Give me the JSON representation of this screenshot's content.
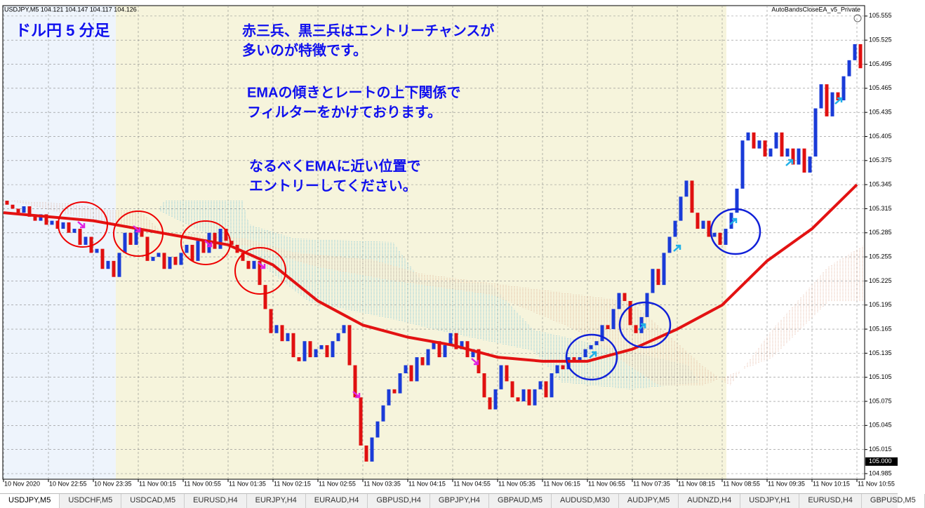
{
  "chart_window": {
    "header": "USDJPY,M5  104.121 104.147 104.117 104.126",
    "ea_name": "AutoBandsCloseEA_v5_Private",
    "annotations": {
      "title": "ドル円 5 分足",
      "line1": "赤三兵、黒三兵はエントリーチャンスが",
      "line2": "多いのが特徴です。",
      "line3": "EMAの傾きとレートの上下関係で",
      "line4": "フィルターをかけております。",
      "line5": "なるべくEMAに近い位置で",
      "line6": "エントリーしてください。"
    },
    "ylim": [
      104.978,
      105.568
    ],
    "price_ticks": [
      105.555,
      105.525,
      105.495,
      105.465,
      105.435,
      105.405,
      105.375,
      105.345,
      105.315,
      105.285,
      105.255,
      105.225,
      105.195,
      105.165,
      105.135,
      105.105,
      105.075,
      105.045,
      105.015,
      104.985
    ],
    "current_price": {
      "value": 105.0,
      "label": "105.000"
    },
    "time_labels": [
      "10 Nov 2020",
      "10 Nov 22:55",
      "10 Nov 23:35",
      "11 Nov 00:15",
      "11 Nov 00:55",
      "11 Nov 01:35",
      "11 Nov 02:15",
      "11 Nov 02:55",
      "11 Nov 03:35",
      "11 Nov 04:15",
      "11 Nov 04:55",
      "11 Nov 05:35",
      "11 Nov 06:15",
      "11 Nov 06:55",
      "11 Nov 07:35",
      "11 Nov 08:15",
      "11 Nov 08:55",
      "11 Nov 09:35",
      "11 Nov 10:15",
      "11 Nov 10:55"
    ],
    "candles": {
      "open": 105.325,
      "closes": [
        105.32,
        105.315,
        105.31,
        105.318,
        105.305,
        105.3,
        105.308,
        105.295,
        105.3,
        105.29,
        105.298,
        105.285,
        105.29,
        105.27,
        105.28,
        105.26,
        105.265,
        105.24,
        105.25,
        105.23,
        105.26,
        105.285,
        105.27,
        105.29,
        105.28,
        105.25,
        105.255,
        105.26,
        105.24,
        105.255,
        105.245,
        105.26,
        105.27,
        105.25,
        105.275,
        105.26,
        105.285,
        105.265,
        105.29,
        105.275,
        105.27,
        105.26,
        105.25,
        105.24,
        105.25,
        105.22,
        105.19,
        105.16,
        105.17,
        105.15,
        105.16,
        105.13,
        105.125,
        105.15,
        105.13,
        105.14,
        105.145,
        105.13,
        105.15,
        105.16,
        105.17,
        105.12,
        105.08,
        105.02,
        105.0,
        105.03,
        105.05,
        105.07,
        105.09,
        105.085,
        105.11,
        105.12,
        105.1,
        105.13,
        105.12,
        105.14,
        105.15,
        105.13,
        105.145,
        105.16,
        105.14,
        105.15,
        105.13,
        105.14,
        105.11,
        105.08,
        105.065,
        105.09,
        105.12,
        105.1,
        105.08,
        105.075,
        105.09,
        105.07,
        105.09,
        105.1,
        105.08,
        105.11,
        105.12,
        105.115,
        105.13,
        105.125,
        105.13,
        105.14,
        105.145,
        105.15,
        105.17,
        105.165,
        105.19,
        105.21,
        105.2,
        105.17,
        105.16,
        105.18,
        105.21,
        105.24,
        105.22,
        105.26,
        105.28,
        105.3,
        105.33,
        105.35,
        105.31,
        105.29,
        105.3,
        105.28,
        105.285,
        105.27,
        105.29,
        105.31,
        105.34,
        105.4,
        105.41,
        105.39,
        105.4,
        105.38,
        105.39,
        105.41,
        105.38,
        105.39,
        105.37,
        105.39,
        105.36,
        105.38,
        105.44,
        105.47,
        105.43,
        105.46,
        105.45,
        105.48,
        105.5,
        105.52,
        105.49
      ]
    },
    "ema": [
      105.31,
      105.305,
      105.3,
      105.29,
      105.28,
      105.27,
      105.245,
      105.2,
      105.17,
      105.155,
      105.145,
      105.13,
      105.125,
      105.125,
      105.14,
      105.165,
      105.195,
      105.25,
      105.29,
      105.345
    ]
  },
  "tabs": [
    "USDJPY,M5",
    "USDCHF,M5",
    "USDCAD,M5",
    "EURUSD,H4",
    "EURJPY,H4",
    "EURAUD,H4",
    "GBPUSD,H4",
    "GBPJPY,H4",
    "GBPAUD,M5",
    "AUDUSD,M30",
    "AUDJPY,M5",
    "AUDNZD,H4",
    "USDJPY,H1",
    "EURUSD,H4",
    "GBPUSD,M5"
  ]
}
